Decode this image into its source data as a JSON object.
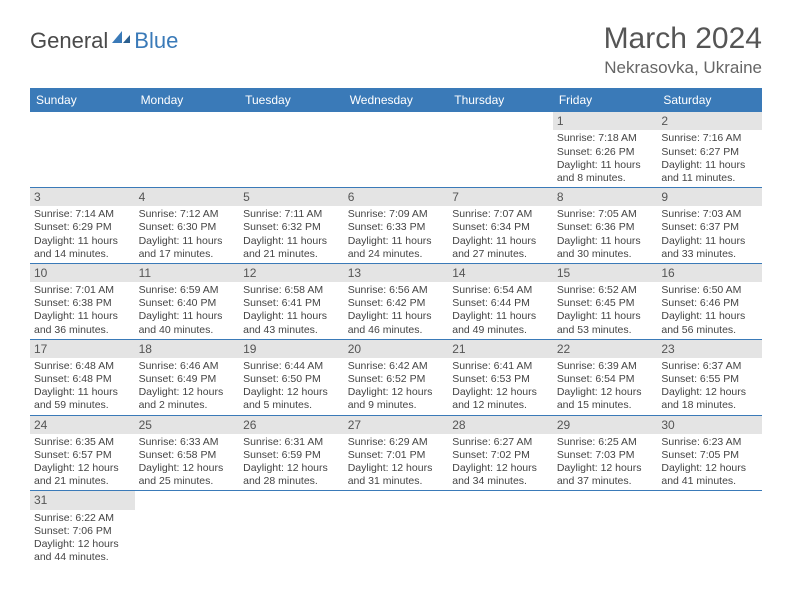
{
  "logo": {
    "general": "General",
    "blue": "Blue"
  },
  "title": "March 2024",
  "location": "Nekrasovka, Ukraine",
  "colors": {
    "header_bg": "#3a7ab8",
    "header_text": "#ffffff",
    "daynum_bg": "#e4e4e4",
    "border": "#3a7ab8",
    "text": "#444444"
  },
  "weekdays": [
    "Sunday",
    "Monday",
    "Tuesday",
    "Wednesday",
    "Thursday",
    "Friday",
    "Saturday"
  ],
  "days": {
    "1": {
      "sunrise": "7:18 AM",
      "sunset": "6:26 PM",
      "daylight": "11 hours and 8 minutes."
    },
    "2": {
      "sunrise": "7:16 AM",
      "sunset": "6:27 PM",
      "daylight": "11 hours and 11 minutes."
    },
    "3": {
      "sunrise": "7:14 AM",
      "sunset": "6:29 PM",
      "daylight": "11 hours and 14 minutes."
    },
    "4": {
      "sunrise": "7:12 AM",
      "sunset": "6:30 PM",
      "daylight": "11 hours and 17 minutes."
    },
    "5": {
      "sunrise": "7:11 AM",
      "sunset": "6:32 PM",
      "daylight": "11 hours and 21 minutes."
    },
    "6": {
      "sunrise": "7:09 AM",
      "sunset": "6:33 PM",
      "daylight": "11 hours and 24 minutes."
    },
    "7": {
      "sunrise": "7:07 AM",
      "sunset": "6:34 PM",
      "daylight": "11 hours and 27 minutes."
    },
    "8": {
      "sunrise": "7:05 AM",
      "sunset": "6:36 PM",
      "daylight": "11 hours and 30 minutes."
    },
    "9": {
      "sunrise": "7:03 AM",
      "sunset": "6:37 PM",
      "daylight": "11 hours and 33 minutes."
    },
    "10": {
      "sunrise": "7:01 AM",
      "sunset": "6:38 PM",
      "daylight": "11 hours and 36 minutes."
    },
    "11": {
      "sunrise": "6:59 AM",
      "sunset": "6:40 PM",
      "daylight": "11 hours and 40 minutes."
    },
    "12": {
      "sunrise": "6:58 AM",
      "sunset": "6:41 PM",
      "daylight": "11 hours and 43 minutes."
    },
    "13": {
      "sunrise": "6:56 AM",
      "sunset": "6:42 PM",
      "daylight": "11 hours and 46 minutes."
    },
    "14": {
      "sunrise": "6:54 AM",
      "sunset": "6:44 PM",
      "daylight": "11 hours and 49 minutes."
    },
    "15": {
      "sunrise": "6:52 AM",
      "sunset": "6:45 PM",
      "daylight": "11 hours and 53 minutes."
    },
    "16": {
      "sunrise": "6:50 AM",
      "sunset": "6:46 PM",
      "daylight": "11 hours and 56 minutes."
    },
    "17": {
      "sunrise": "6:48 AM",
      "sunset": "6:48 PM",
      "daylight": "11 hours and 59 minutes."
    },
    "18": {
      "sunrise": "6:46 AM",
      "sunset": "6:49 PM",
      "daylight": "12 hours and 2 minutes."
    },
    "19": {
      "sunrise": "6:44 AM",
      "sunset": "6:50 PM",
      "daylight": "12 hours and 5 minutes."
    },
    "20": {
      "sunrise": "6:42 AM",
      "sunset": "6:52 PM",
      "daylight": "12 hours and 9 minutes."
    },
    "21": {
      "sunrise": "6:41 AM",
      "sunset": "6:53 PM",
      "daylight": "12 hours and 12 minutes."
    },
    "22": {
      "sunrise": "6:39 AM",
      "sunset": "6:54 PM",
      "daylight": "12 hours and 15 minutes."
    },
    "23": {
      "sunrise": "6:37 AM",
      "sunset": "6:55 PM",
      "daylight": "12 hours and 18 minutes."
    },
    "24": {
      "sunrise": "6:35 AM",
      "sunset": "6:57 PM",
      "daylight": "12 hours and 21 minutes."
    },
    "25": {
      "sunrise": "6:33 AM",
      "sunset": "6:58 PM",
      "daylight": "12 hours and 25 minutes."
    },
    "26": {
      "sunrise": "6:31 AM",
      "sunset": "6:59 PM",
      "daylight": "12 hours and 28 minutes."
    },
    "27": {
      "sunrise": "6:29 AM",
      "sunset": "7:01 PM",
      "daylight": "12 hours and 31 minutes."
    },
    "28": {
      "sunrise": "6:27 AM",
      "sunset": "7:02 PM",
      "daylight": "12 hours and 34 minutes."
    },
    "29": {
      "sunrise": "6:25 AM",
      "sunset": "7:03 PM",
      "daylight": "12 hours and 37 minutes."
    },
    "30": {
      "sunrise": "6:23 AM",
      "sunset": "7:05 PM",
      "daylight": "12 hours and 41 minutes."
    },
    "31": {
      "sunrise": "6:22 AM",
      "sunset": "7:06 PM",
      "daylight": "12 hours and 44 minutes."
    }
  },
  "layout": {
    "grid": [
      [
        null,
        null,
        null,
        null,
        null,
        "1",
        "2"
      ],
      [
        "3",
        "4",
        "5",
        "6",
        "7",
        "8",
        "9"
      ],
      [
        "10",
        "11",
        "12",
        "13",
        "14",
        "15",
        "16"
      ],
      [
        "17",
        "18",
        "19",
        "20",
        "21",
        "22",
        "23"
      ],
      [
        "24",
        "25",
        "26",
        "27",
        "28",
        "29",
        "30"
      ],
      [
        "31",
        null,
        null,
        null,
        null,
        null,
        null
      ]
    ]
  },
  "labels": {
    "sunrise": "Sunrise:",
    "sunset": "Sunset:",
    "daylight": "Daylight:"
  }
}
